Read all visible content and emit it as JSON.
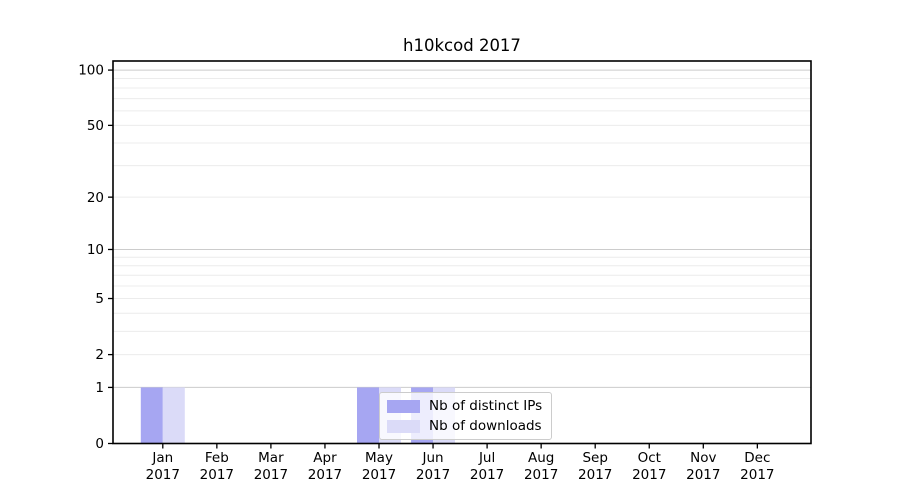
{
  "title": "h10kcod 2017",
  "legend": {
    "items": [
      {
        "label": "Nb of distinct IPs",
        "color": "#a6a6f2"
      },
      {
        "label": "Nb of downloads",
        "color": "#dbdbf8"
      }
    ],
    "position": "lower center"
  },
  "chart_data": {
    "type": "bar",
    "title": "h10kcod 2017",
    "xlabel": "",
    "ylabel": "",
    "categories": [
      "Jan 2017",
      "Feb 2017",
      "Mar 2017",
      "Apr 2017",
      "May 2017",
      "Jun 2017",
      "Jul 2017",
      "Aug 2017",
      "Sep 2017",
      "Oct 2017",
      "Nov 2017",
      "Dec 2017"
    ],
    "series": [
      {
        "name": "Nb of distinct IPs",
        "color": "#a6a6f2",
        "values": [
          1,
          0,
          0,
          0,
          1,
          1,
          0,
          0,
          0,
          0,
          0,
          0
        ]
      },
      {
        "name": "Nb of downloads",
        "color": "#dbdbf8",
        "values": [
          1,
          0,
          0,
          0,
          1,
          1,
          0,
          0,
          0,
          0,
          0,
          0
        ]
      }
    ],
    "y_scale": "log1p",
    "ylim": [
      0,
      112
    ],
    "y_major_ticks": [
      0,
      1,
      2,
      5,
      10,
      20,
      50,
      100
    ],
    "y_major_gridlines": [
      1,
      10,
      100
    ],
    "y_minor_gridlines": [
      2,
      3,
      4,
      5,
      6,
      7,
      8,
      9,
      20,
      30,
      40,
      50,
      60,
      70,
      80,
      90
    ],
    "grid": true,
    "legend_position": "lower center"
  },
  "colors": {
    "spine": "#000000",
    "major_grid": "#cccccc",
    "minor_grid": "#ececec",
    "text": "#000000",
    "background": "#ffffff"
  }
}
